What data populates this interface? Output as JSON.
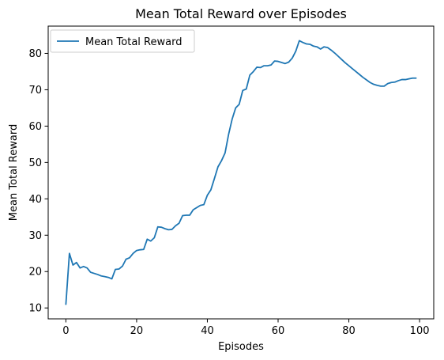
{
  "chart_data": {
    "type": "line",
    "title": "Mean Total Reward over Episodes",
    "xlabel": "Episodes",
    "ylabel": "Mean Total Reward",
    "xlim": [
      -5,
      104
    ],
    "ylim": [
      7,
      87.5
    ],
    "xticks": [
      0,
      20,
      40,
      60,
      80,
      100
    ],
    "yticks": [
      10,
      20,
      30,
      40,
      50,
      60,
      70,
      80
    ],
    "grid": false,
    "legend_position": "top-left",
    "series": [
      {
        "name": "Mean Total Reward",
        "color": "#1f77b4",
        "x": [
          0,
          1,
          2,
          3,
          4,
          5,
          6,
          7,
          8,
          9,
          10,
          11,
          12,
          13,
          14,
          15,
          16,
          17,
          18,
          19,
          20,
          21,
          22,
          23,
          24,
          25,
          26,
          27,
          28,
          29,
          30,
          31,
          32,
          33,
          34,
          35,
          36,
          37,
          38,
          39,
          40,
          41,
          42,
          43,
          44,
          45,
          46,
          47,
          48,
          49,
          50,
          51,
          52,
          53,
          54,
          55,
          56,
          57,
          58,
          59,
          60,
          61,
          62,
          63,
          64,
          65,
          66,
          67,
          68,
          69,
          70,
          71,
          72,
          73,
          74,
          75,
          76,
          77,
          78,
          79,
          80,
          81,
          82,
          83,
          84,
          85,
          86,
          87,
          88,
          89,
          90,
          91,
          92,
          93,
          94,
          95,
          96,
          97,
          98,
          99
        ],
        "y": [
          11.0,
          25.0,
          21.8,
          22.5,
          21.0,
          21.4,
          21.0,
          19.8,
          19.5,
          19.2,
          18.8,
          18.6,
          18.4,
          18.0,
          20.6,
          20.7,
          21.5,
          23.4,
          23.8,
          25.0,
          25.8,
          26.0,
          26.1,
          28.9,
          28.4,
          29.3,
          32.3,
          32.2,
          31.8,
          31.5,
          31.6,
          32.6,
          33.3,
          35.4,
          35.5,
          35.5,
          37.0,
          37.6,
          38.2,
          38.4,
          41.0,
          42.5,
          45.6,
          48.8,
          50.5,
          52.6,
          57.7,
          61.9,
          65.0,
          66.0,
          69.8,
          70.2,
          74.0,
          75.0,
          76.2,
          76.1,
          76.6,
          76.6,
          76.8,
          77.9,
          77.8,
          77.5,
          77.2,
          77.6,
          78.7,
          80.6,
          83.5,
          83.0,
          82.6,
          82.5,
          82.0,
          81.8,
          81.2,
          81.8,
          81.6,
          80.9,
          80.1,
          79.2,
          78.3,
          77.4,
          76.6,
          75.8,
          75.0,
          74.2,
          73.4,
          72.7,
          72.0,
          71.5,
          71.2,
          71.0,
          71.0,
          71.7,
          72.0,
          72.1,
          72.5,
          72.8,
          72.8,
          73.0,
          73.2,
          73.2
        ]
      }
    ]
  }
}
